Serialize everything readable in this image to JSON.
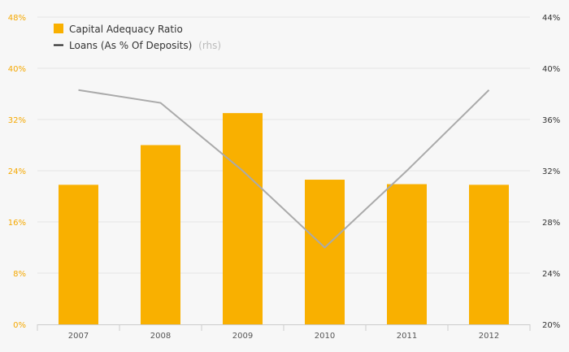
{
  "chart_data": {
    "type": "bar",
    "categories": [
      "2007",
      "2008",
      "2009",
      "2010",
      "2011",
      "2012"
    ],
    "series": [
      {
        "name": "Capital Adequacy Ratio",
        "type": "bar",
        "axis": "left",
        "color": "#f9b000",
        "values": [
          21.8,
          28.0,
          33.0,
          22.6,
          21.9,
          21.8
        ]
      },
      {
        "name": "Loans (As % Of Deposits)",
        "name_suffix": "(rhs)",
        "type": "line",
        "axis": "right",
        "color": "#aaaaaa",
        "values": [
          38.3,
          37.3,
          32.0,
          26.0,
          32.0,
          38.3
        ]
      }
    ],
    "y_left": {
      "range": [
        0,
        48
      ],
      "ticks": [
        "0%",
        "8%",
        "16%",
        "24%",
        "32%",
        "40%",
        "48%"
      ],
      "color": "#f5a800"
    },
    "y_right": {
      "range": [
        20,
        44
      ],
      "ticks": [
        "20%",
        "24%",
        "28%",
        "32%",
        "36%",
        "40%",
        "44%"
      ]
    },
    "legend": {
      "placement": "top-left",
      "items": [
        {
          "label": "Capital Adequacy Ratio",
          "suffix": "",
          "kind": "square"
        },
        {
          "label": "Loans (As % Of Deposits)",
          "suffix": "(rhs)",
          "kind": "line"
        }
      ]
    },
    "grid": true,
    "title": "",
    "xlabel": "",
    "ylabel": ""
  }
}
